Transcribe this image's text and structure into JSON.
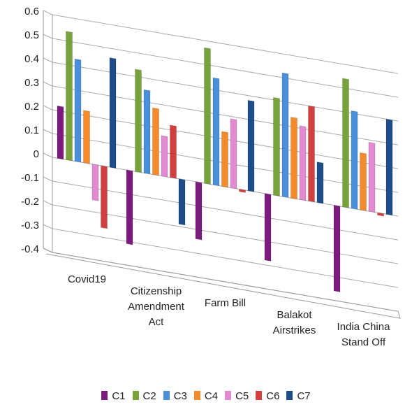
{
  "chart_data": {
    "type": "bar",
    "categories": [
      "Covid19",
      "Citizenship Amendment Act",
      "Farm Bill",
      "Balakot Airstrikes",
      "India China Stand Off"
    ],
    "series": [
      {
        "name": "C1",
        "color": "#7b1b7e",
        "values": [
          0.22,
          -0.31,
          -0.24,
          -0.28,
          -0.36
        ]
      },
      {
        "name": "C2",
        "color": "#77a33a",
        "values": [
          0.54,
          0.43,
          0.57,
          0.41,
          0.54
        ]
      },
      {
        "name": "C3",
        "color": "#4a8fd9",
        "values": [
          0.43,
          0.35,
          0.45,
          0.52,
          0.41
        ]
      },
      {
        "name": "C4",
        "color": "#f58a2b",
        "values": [
          0.22,
          0.28,
          0.23,
          0.34,
          0.24
        ]
      },
      {
        "name": "C5",
        "color": "#e38bd0",
        "values": [
          -0.15,
          0.17,
          0.29,
          0.31,
          0.29
        ]
      },
      {
        "name": "C6",
        "color": "#d23f3f",
        "values": [
          -0.26,
          0.22,
          -0.01,
          0.4,
          -0.01
        ]
      },
      {
        "name": "C7",
        "color": "#1d4e89",
        "values": [
          0.46,
          -0.19,
          0.38,
          0.17,
          0.4
        ]
      }
    ],
    "ylim": [
      -0.4,
      0.6
    ],
    "yticks": [
      0.6,
      0.5,
      0.4,
      0.3,
      0.2,
      0.1,
      0,
      -0.1,
      -0.2,
      -0.3,
      -0.4
    ],
    "grid": true
  }
}
